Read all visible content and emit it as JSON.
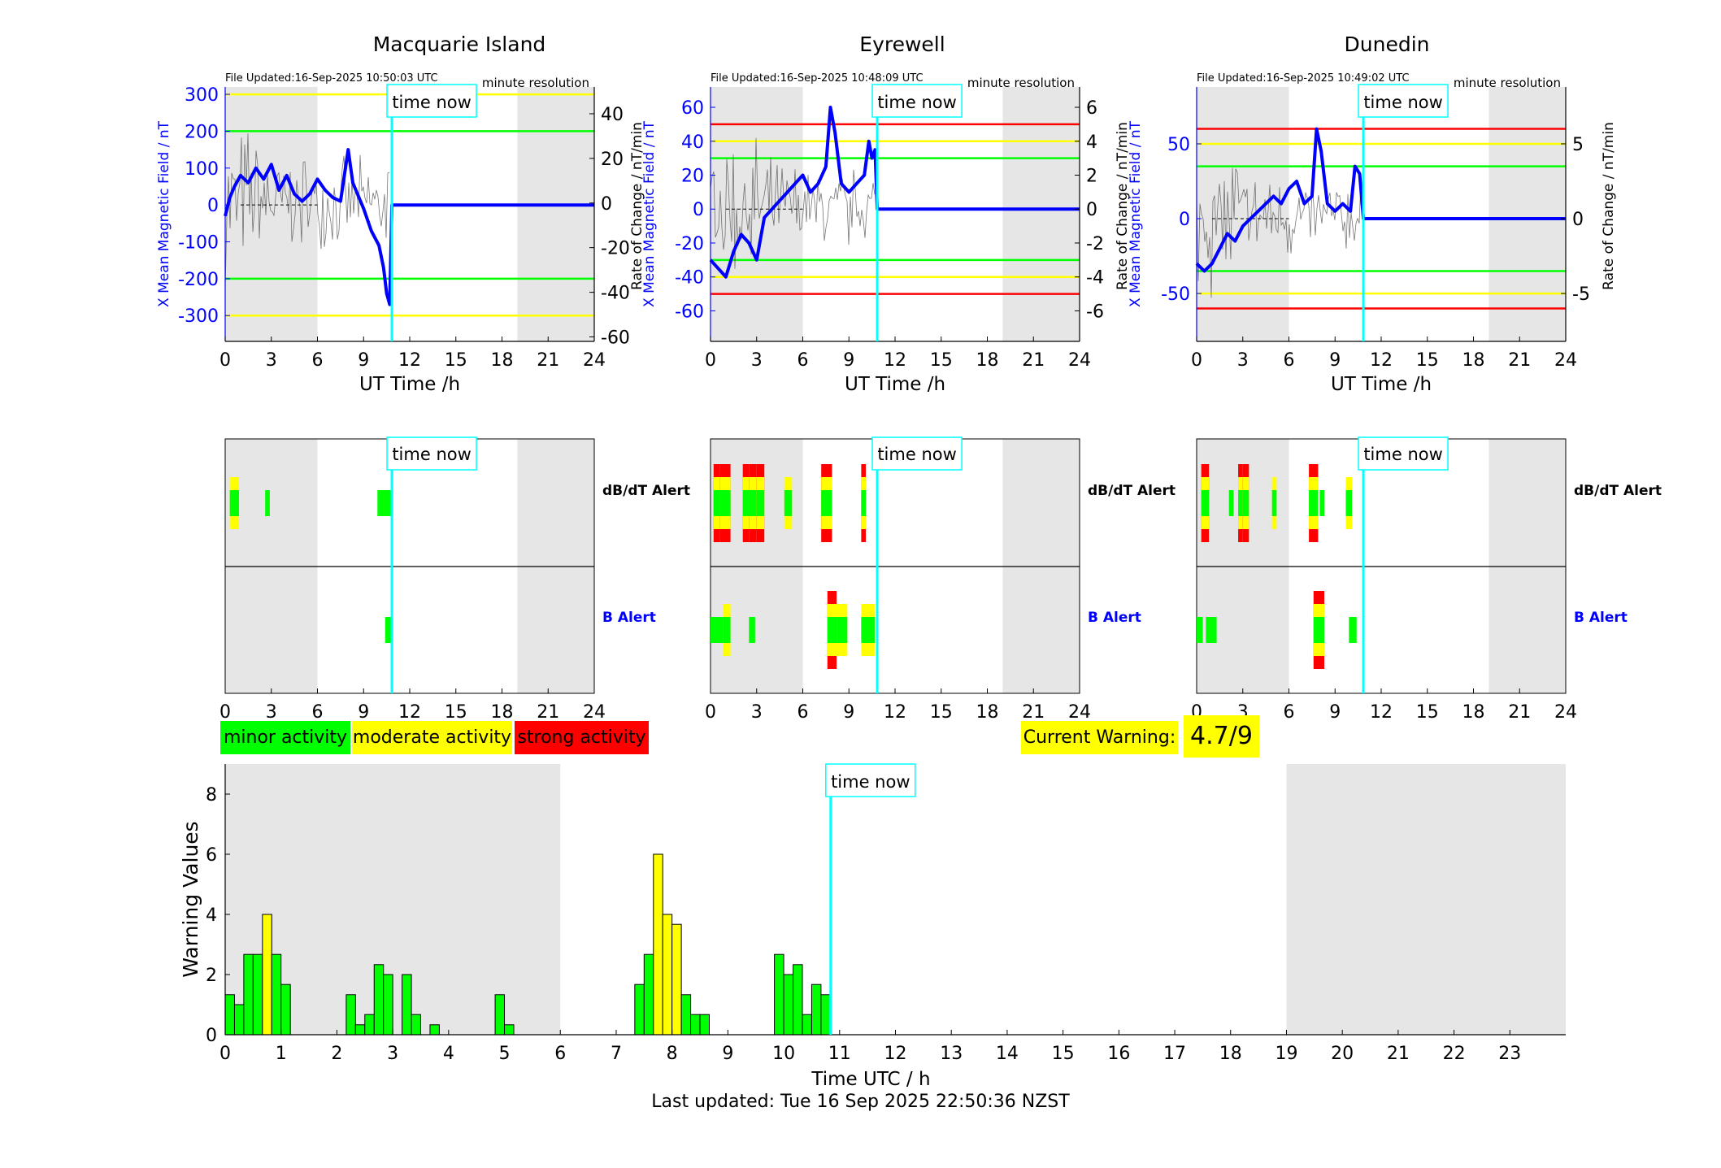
{
  "colors": {
    "minor": "#00ff00",
    "moderate": "#ffff00",
    "strong": "#ff0000",
    "now_line": "#00ffff",
    "field_line": "#0000ff",
    "night_shade": "#e6e6e6"
  },
  "common": {
    "time_now_label": "time now",
    "time_now_utc": 10.84,
    "night_shade_ranges": [
      [
        0,
        6
      ],
      [
        19,
        24
      ]
    ],
    "resolution_label": "minute resolution",
    "xlabel": "UT Time /h",
    "ylabel_left": "X Mean Magnetic Field / nT",
    "ylabel_right": "Rate of Change / nT/min",
    "xticks": [
      "0",
      "3",
      "6",
      "9",
      "12",
      "15",
      "18",
      "21",
      "24"
    ],
    "dbdt_alert_label": "dB/dT Alert",
    "b_alert_label": "B Alert"
  },
  "legend": {
    "minor_label": "minor activity",
    "moderate_label": "moderate activity",
    "strong_label": "strong activity"
  },
  "current_warning": {
    "label": "Current Warning:",
    "value": "4.7/9"
  },
  "last_updated": "Last updated: Tue 16 Sep 2025 22:50:36 NZST",
  "chart_data": [
    {
      "type": "line",
      "station": "Macquarie Island",
      "file_updated": "File Updated:16-Sep-2025 10:50:03 UTC",
      "ylim": [
        -370,
        320
      ],
      "y2lim": [
        -62,
        52
      ],
      "yticks": [
        "300",
        "200",
        "100",
        "0",
        "-100",
        "-200",
        "-300"
      ],
      "y2ticks": [
        "40",
        "20",
        "0",
        "-20",
        "-40",
        "-60"
      ],
      "thresholds": [
        {
          "value": 300,
          "level": "moderate"
        },
        {
          "value": 200,
          "level": "minor"
        },
        {
          "value": -200,
          "level": "minor"
        },
        {
          "value": -300,
          "level": "moderate"
        }
      ],
      "field_x": [
        0,
        0.3,
        0.6,
        1,
        1.5,
        2,
        2.5,
        3,
        3.5,
        4,
        4.5,
        5,
        5.5,
        6,
        6.5,
        7,
        7.5,
        8,
        8.3,
        8.7,
        9,
        9.5,
        10,
        10.3,
        10.5,
        10.7,
        10.84,
        24
      ],
      "field_y": [
        -30,
        20,
        50,
        80,
        60,
        100,
        70,
        110,
        40,
        80,
        30,
        10,
        30,
        70,
        40,
        20,
        10,
        150,
        60,
        20,
        -10,
        -70,
        -110,
        -170,
        -240,
        -270,
        0,
        0
      ]
    },
    {
      "type": "line",
      "station": "Eyrewell",
      "file_updated": "File Updated:16-Sep-2025 10:48:09 UTC",
      "ylim": [
        -78,
        72
      ],
      "y2lim": [
        -7.8,
        7.2
      ],
      "yticks": [
        "60",
        "40",
        "20",
        "0",
        "-20",
        "-40",
        "-60"
      ],
      "y2ticks": [
        "6",
        "4",
        "2",
        "0",
        "-2",
        "-4",
        "-6"
      ],
      "thresholds": [
        {
          "value": 50,
          "level": "strong"
        },
        {
          "value": 40,
          "level": "moderate"
        },
        {
          "value": 30,
          "level": "minor"
        },
        {
          "value": -30,
          "level": "minor"
        },
        {
          "value": -40,
          "level": "moderate"
        },
        {
          "value": -50,
          "level": "strong"
        }
      ],
      "field_x": [
        0,
        0.5,
        1,
        1.5,
        2,
        2.5,
        3,
        3.5,
        4,
        4.5,
        5,
        5.5,
        6,
        6.5,
        7,
        7.5,
        7.8,
        8.1,
        8.5,
        9,
        9.5,
        10,
        10.3,
        10.5,
        10.7,
        10.84,
        24
      ],
      "field_y": [
        -30,
        -35,
        -40,
        -25,
        -15,
        -20,
        -30,
        -5,
        0,
        5,
        10,
        15,
        20,
        10,
        15,
        25,
        60,
        45,
        15,
        10,
        15,
        20,
        40,
        30,
        35,
        0,
        0
      ]
    },
    {
      "type": "line",
      "station": "Dunedin",
      "file_updated": "File Updated:16-Sep-2025 10:49:02 UTC",
      "ylim": [
        -82,
        88
      ],
      "y2lim": [
        -8.2,
        8.8
      ],
      "yticks": [
        "50",
        "0",
        "-50"
      ],
      "y2ticks": [
        "5",
        "0",
        "-5"
      ],
      "thresholds": [
        {
          "value": 60,
          "level": "strong"
        },
        {
          "value": 50,
          "level": "moderate"
        },
        {
          "value": 35,
          "level": "minor"
        },
        {
          "value": -35,
          "level": "minor"
        },
        {
          "value": -50,
          "level": "moderate"
        },
        {
          "value": -60,
          "level": "strong"
        }
      ],
      "field_x": [
        0,
        0.5,
        1,
        1.5,
        2,
        2.5,
        3,
        3.5,
        4,
        4.5,
        5,
        5.5,
        6,
        6.5,
        7,
        7.5,
        7.8,
        8.1,
        8.5,
        9,
        9.5,
        10,
        10.3,
        10.6,
        10.84,
        24
      ],
      "field_y": [
        -30,
        -35,
        -30,
        -20,
        -10,
        -15,
        -5,
        0,
        5,
        10,
        15,
        10,
        20,
        25,
        10,
        15,
        60,
        45,
        10,
        5,
        10,
        5,
        35,
        30,
        0,
        0
      ]
    },
    {
      "type": "bar",
      "title": "",
      "xlabel": "Time UTC / h",
      "ylabel": "Warning Values",
      "xlim": [
        0,
        24
      ],
      "ylim": [
        0,
        9
      ],
      "xticks": [
        "0",
        "1",
        "2",
        "3",
        "4",
        "5",
        "6",
        "7",
        "8",
        "9",
        "10",
        "11",
        "12",
        "13",
        "14",
        "15",
        "16",
        "17",
        "18",
        "19",
        "20",
        "21",
        "22",
        "23"
      ],
      "yticks": [
        "0",
        "2",
        "4",
        "6",
        "8"
      ],
      "bar_width_h": 0.1667,
      "bars": [
        {
          "x": 0.0,
          "v": 1.33
        },
        {
          "x": 0.167,
          "v": 1.0
        },
        {
          "x": 0.333,
          "v": 2.67
        },
        {
          "x": 0.5,
          "v": 2.67
        },
        {
          "x": 0.667,
          "v": 4.0
        },
        {
          "x": 0.833,
          "v": 2.67
        },
        {
          "x": 1.0,
          "v": 1.67
        },
        {
          "x": 2.167,
          "v": 1.33
        },
        {
          "x": 2.333,
          "v": 0.33
        },
        {
          "x": 2.5,
          "v": 0.67
        },
        {
          "x": 2.667,
          "v": 2.33
        },
        {
          "x": 2.833,
          "v": 2.0
        },
        {
          "x": 3.167,
          "v": 2.0
        },
        {
          "x": 3.333,
          "v": 0.67
        },
        {
          "x": 3.667,
          "v": 0.33
        },
        {
          "x": 4.833,
          "v": 1.33
        },
        {
          "x": 5.0,
          "v": 0.33
        },
        {
          "x": 7.333,
          "v": 1.67
        },
        {
          "x": 7.5,
          "v": 2.67
        },
        {
          "x": 7.667,
          "v": 6.0
        },
        {
          "x": 7.833,
          "v": 4.0
        },
        {
          "x": 8.0,
          "v": 3.67
        },
        {
          "x": 8.167,
          "v": 1.33
        },
        {
          "x": 8.333,
          "v": 0.67
        },
        {
          "x": 8.5,
          "v": 0.67
        },
        {
          "x": 9.833,
          "v": 2.67
        },
        {
          "x": 10.0,
          "v": 2.0
        },
        {
          "x": 10.167,
          "v": 2.33
        },
        {
          "x": 10.333,
          "v": 0.67
        },
        {
          "x": 10.5,
          "v": 1.67
        },
        {
          "x": 10.667,
          "v": 1.33
        }
      ]
    }
  ],
  "alerts": [
    {
      "dbdt": [
        {
          "s": 0.3,
          "e": 0.9,
          "max": "moderate"
        },
        {
          "s": 2.6,
          "e": 2.9,
          "max": "minor"
        },
        {
          "s": 9.9,
          "e": 10.8,
          "max": "minor"
        }
      ],
      "b": [
        {
          "s": 10.4,
          "e": 10.84,
          "max": "minor"
        }
      ]
    },
    {
      "dbdt": [
        {
          "s": 0.2,
          "e": 0.6,
          "max": "strong"
        },
        {
          "s": 0.6,
          "e": 1.3,
          "max": "strong"
        },
        {
          "s": 2.1,
          "e": 2.5,
          "max": "strong"
        },
        {
          "s": 2.5,
          "e": 3.0,
          "max": "strong"
        },
        {
          "s": 3.0,
          "e": 3.5,
          "max": "strong"
        },
        {
          "s": 4.8,
          "e": 5.3,
          "max": "moderate"
        },
        {
          "s": 7.2,
          "e": 7.9,
          "max": "strong"
        },
        {
          "s": 9.8,
          "e": 10.1,
          "max": "strong"
        }
      ],
      "b": [
        {
          "s": 0.0,
          "e": 0.8,
          "max": "minor"
        },
        {
          "s": 0.8,
          "e": 1.3,
          "max": "moderate"
        },
        {
          "s": 2.5,
          "e": 2.9,
          "max": "minor"
        },
        {
          "s": 7.6,
          "e": 8.2,
          "max": "strong"
        },
        {
          "s": 8.2,
          "e": 8.9,
          "max": "moderate"
        },
        {
          "s": 9.8,
          "e": 10.7,
          "max": "moderate"
        }
      ]
    },
    {
      "dbdt": [
        {
          "s": 0.3,
          "e": 0.8,
          "max": "strong"
        },
        {
          "s": 2.1,
          "e": 2.4,
          "max": "minor"
        },
        {
          "s": 2.7,
          "e": 3.0,
          "max": "strong"
        },
        {
          "s": 3.0,
          "e": 3.4,
          "max": "strong"
        },
        {
          "s": 4.9,
          "e": 5.2,
          "max": "moderate"
        },
        {
          "s": 7.3,
          "e": 7.9,
          "max": "strong"
        },
        {
          "s": 8.0,
          "e": 8.3,
          "max": "minor"
        },
        {
          "s": 9.7,
          "e": 10.1,
          "max": "moderate"
        }
      ],
      "b": [
        {
          "s": 0.0,
          "e": 0.4,
          "max": "minor"
        },
        {
          "s": 0.6,
          "e": 1.3,
          "max": "minor"
        },
        {
          "s": 7.6,
          "e": 8.3,
          "max": "strong"
        },
        {
          "s": 9.9,
          "e": 10.4,
          "max": "minor"
        }
      ]
    }
  ]
}
